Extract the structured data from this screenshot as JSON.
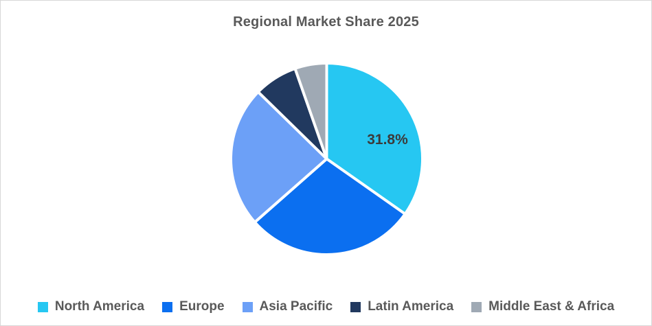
{
  "page": {
    "background": "#FFFFFF",
    "border_color": "#D7D7D7"
  },
  "chart_data": {
    "type": "pie",
    "title": "Regional Market Share 2025",
    "title_color": "#595959",
    "categories": [
      "North America",
      "Europe",
      "Asia Pacific",
      "Latin America",
      "Middle East & Africa"
    ],
    "values": [
      31.8,
      26.3,
      21.8,
      6.7,
      4.9
    ],
    "data_labels": [
      "31.8%",
      "",
      "",
      "",
      ""
    ],
    "data_label_color": "#3B3B3B",
    "colors": [
      "#26C7F2",
      "#0B6FF0",
      "#6CA0F7",
      "#21395F",
      "#9FA9B4"
    ],
    "slice_border_color": "#FFFFFF",
    "start_angle_deg": 0,
    "direction": "clockwise",
    "legend_position": "bottom",
    "legend_text_color": "#595959"
  }
}
